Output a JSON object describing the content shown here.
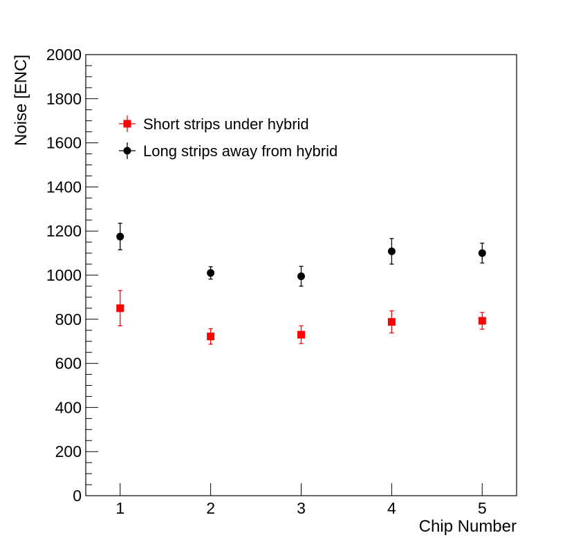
{
  "chart_data": {
    "type": "scatter",
    "title": "",
    "xlabel": "Chip Number",
    "ylabel": "Noise [ENC]",
    "xlim": [
      0.62,
      5.38
    ],
    "ylim": [
      0,
      2000
    ],
    "x_ticks": [
      "1",
      "2",
      "3",
      "4",
      "5"
    ],
    "y_ticks": [
      "0",
      "200",
      "400",
      "600",
      "800",
      "1000",
      "1200",
      "1400",
      "1600",
      "1800",
      "2000"
    ],
    "grid": false,
    "legend_position": "top-left",
    "series": [
      {
        "name": "Short strips under hybrid",
        "color": "#ff0000",
        "marker": "square",
        "x": [
          1,
          2,
          3,
          4,
          5
        ],
        "y": [
          850,
          722,
          730,
          788,
          793
        ],
        "err": [
          80,
          35,
          40,
          50,
          38
        ]
      },
      {
        "name": "Long strips away from hybrid",
        "color": "#000000",
        "marker": "circle",
        "x": [
          1,
          2,
          3,
          4,
          5
        ],
        "y": [
          1175,
          1010,
          995,
          1108,
          1100
        ],
        "err": [
          60,
          28,
          45,
          58,
          45
        ]
      }
    ]
  }
}
